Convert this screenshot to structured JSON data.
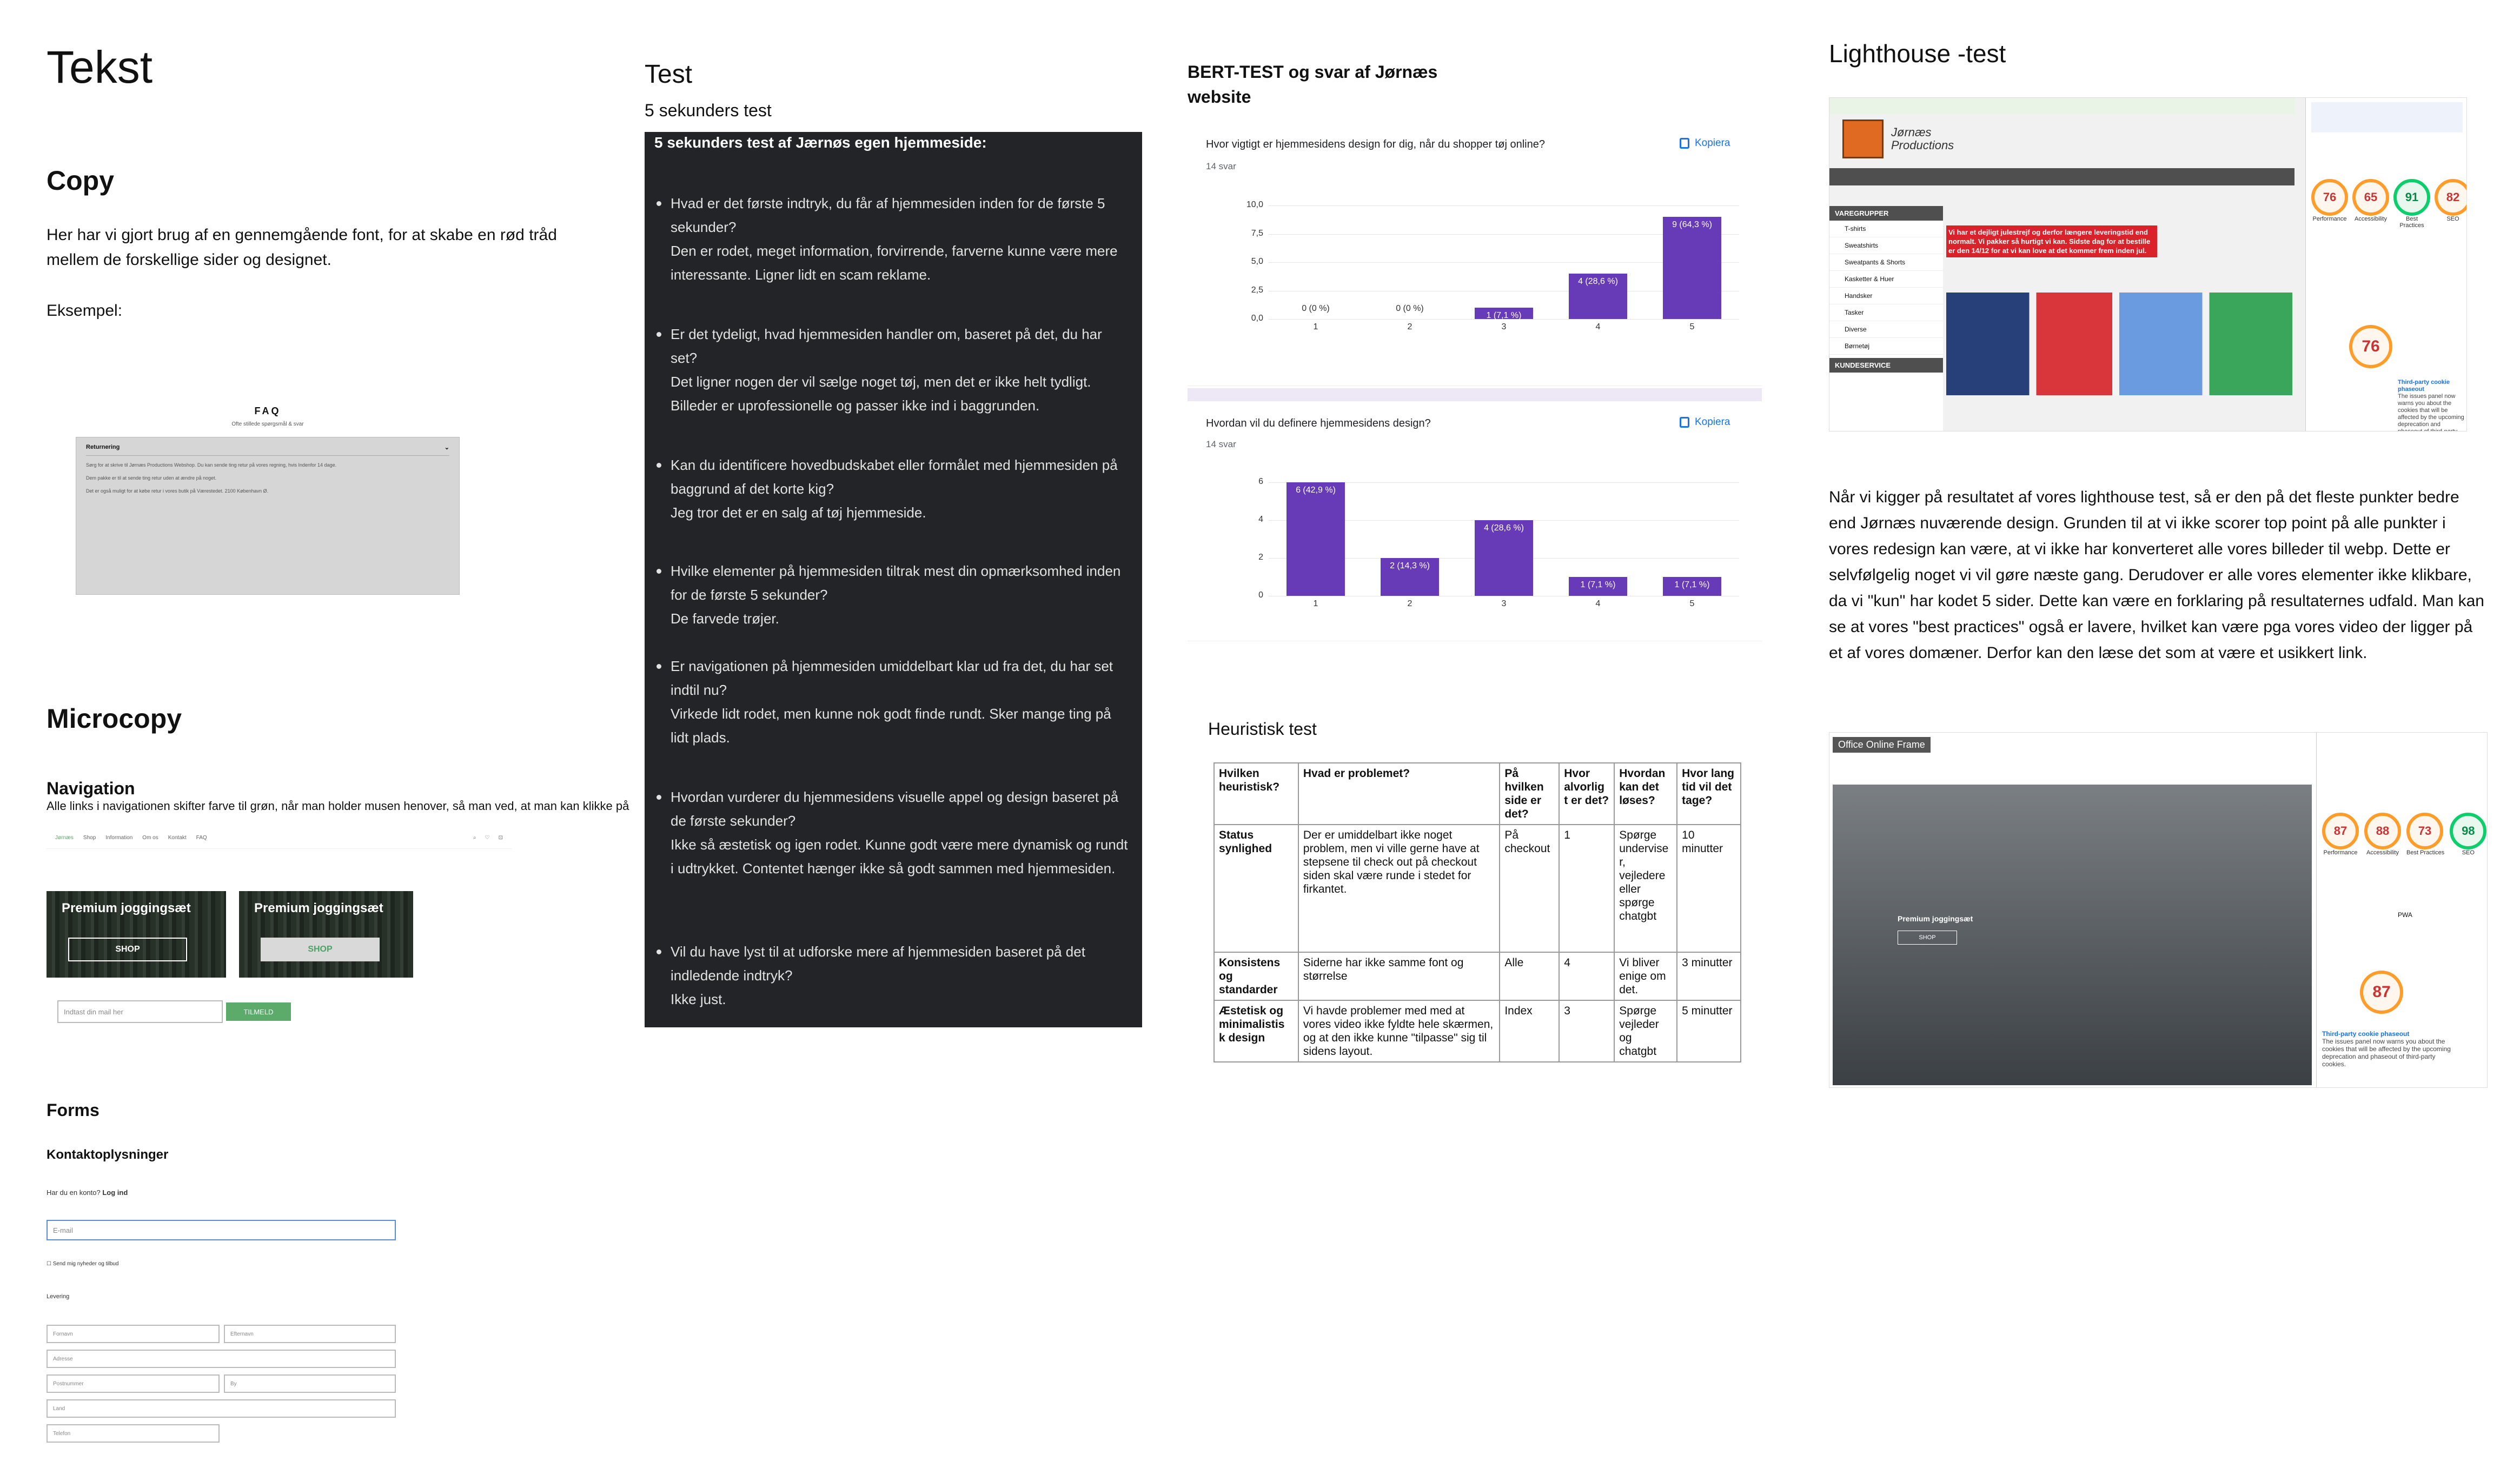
{
  "col1": {
    "title": "Tekst",
    "copy_heading": "Copy",
    "copy_text": "Her har vi gjort brug af en gennemgående font, for at skabe en rød tråd mellem de forskellige sider og designet.",
    "example_label": "Eksempel:",
    "faq": {
      "title": "FAQ",
      "subtitle": "Ofte stillede spørgsmål & svar",
      "item_label": "Returnering",
      "p1": "Sørg for at skrive til Jørnæs Productions Webshop. Du kan sende ting retur på vores regning, hvis Indenfor 14 dage.",
      "p2": "Dem pakke er til at sende ting retur uden at ændre på noget.",
      "p3": "Det er også muligt for at købe retur i vores butik på Værestedet. 2100 København Ø.",
      "chevron": "chevron-down-icon"
    },
    "microcopy_heading": "Microcopy",
    "navigation_heading": "Navigation",
    "navigation_text": "Alle links i navigationen skifter farve til grøn, når man holder musen henover, så man ved, at man kan klikke på",
    "nav_items": [
      "Jørnæs",
      "Shop",
      "Information",
      "Om os",
      "Kontakt",
      "FAQ"
    ],
    "tile1": {
      "title": "Premium joggingsæt",
      "button": "SHOP"
    },
    "tile2": {
      "title": "Premium joggingsæt",
      "button": "SHOP"
    },
    "newsletter_placeholder": "Indtast din mail her",
    "newsletter_button": "TILMELD",
    "forms_heading": "Forms",
    "contact_heading": "Kontaktoplysninger",
    "account_prompt": "Har du en konto?",
    "login_link": "Log ind",
    "email_placeholder": "E-mail",
    "newsletter_checkbox": "Send mig nyheder og tilbud",
    "delivery_label": "Levering",
    "first_name": "Fornavn",
    "last_name": "Efternavn",
    "address": "Adresse",
    "postcode": "Postnummer",
    "city": "By",
    "country": "Land",
    "phone": "Telefon"
  },
  "col2": {
    "title": "Test",
    "subtitle": "5 sekunders test",
    "box_title": "5 sekunders test af Jærnøs egen hjemmeside:",
    "items": [
      "Hvad er det første indtryk, du får af hjemmesiden inden for de første 5 sekunder?\nDen er rodet, meget information, forvirrende, farverne kunne være mere interessante. Ligner lidt en scam reklame.",
      "Er det tydeligt, hvad hjemmesiden handler om, baseret på det, du har set?\nDet ligner nogen der vil sælge noget tøj, men det er ikke helt tydligt. Billeder er uprofessionelle og passer ikke ind i baggrunden.",
      "Kan du identificere hovedbudskabet eller formålet med hjemmesiden på baggrund af det korte kig?\nJeg tror det er en salg af tøj hjemmeside.",
      "Hvilke elementer på hjemmesiden tiltrak mest din opmærksomhed inden for de første 5 sekunder?\nDe farvede trøjer.",
      "Er navigationen på hjemmesiden umiddelbart klar ud fra det, du har set indtil nu?\nVirkede lidt rodet, men kunne nok godt finde rundt. Sker mange ting på lidt plads.",
      "Hvordan vurderer du hjemmesidens visuelle appel og design baseret på de første sekunder?\nIkke så æstetisk og igen rodet. Kunne godt være mere dynamisk og rundt i udtrykket. Contentet hænger ikke så godt sammen med hjemmesiden.",
      "Vil du have lyst til at udforske mere af hjemmesiden baseret på det indledende indtryk?\nIkke just."
    ]
  },
  "col3": {
    "title_line1": "BERT-TEST og svar af Jørnæs",
    "title_line2": "website",
    "copy_label": "Kopiera",
    "chart_data": [
      {
        "type": "bar",
        "title": "Hvor vigtigt er hjemmesidens design for dig, når du shopper tøj online?",
        "subtitle": "14 svar",
        "categories": [
          "1",
          "2",
          "3",
          "4",
          "5"
        ],
        "values": [
          0,
          0,
          1,
          4,
          9
        ],
        "labels": [
          "0 (0 %)",
          "0 (0 %)",
          "1 (7,1 %)",
          "4 (28,6 %)",
          "9 (64,3 %)"
        ],
        "ylim": [
          0,
          10
        ],
        "yticks": [
          "0,0",
          "2,5",
          "5,0",
          "7,5",
          "10,0"
        ],
        "ytick_values": [
          0,
          2.5,
          5,
          7.5,
          10
        ],
        "color": "#673ab7"
      },
      {
        "type": "bar",
        "title": "Hvordan vil du definere hjemmesidens design?",
        "subtitle": "14 svar",
        "categories": [
          "1",
          "2",
          "3",
          "4",
          "5"
        ],
        "values": [
          6,
          2,
          4,
          1,
          1
        ],
        "labels": [
          "6 (42,9 %)",
          "2 (14,3 %)",
          "4 (28,6 %)",
          "1 (7,1 %)",
          "1 (7,1 %)"
        ],
        "ylim": [
          0,
          6
        ],
        "yticks": [
          "0",
          "2",
          "4",
          "6"
        ],
        "ytick_values": [
          0,
          2,
          4,
          6
        ],
        "color": "#673ab7"
      }
    ],
    "heuristic_title": "Heuristisk test",
    "table_headers": [
      "Hvilken heuristisk?",
      "Hvad er problemet?",
      "På hvilken side er det?",
      "Hvor alvorlig t er det?",
      "Hvordan kan det løses?",
      "Hvor lang tid vil det tage?"
    ],
    "table_rows": [
      [
        "Status synlighed",
        "Der er umiddelbart ikke noget problem, men vi ville gerne have at stepsene til check out på checkout siden skal være runde i stedet for firkantet.",
        "På checkout",
        "1",
        "Spørge undervise r, vejledere eller spørge chatgbt",
        "10 minutter"
      ],
      [
        "Konsistens og standarder",
        "Siderne har ikke samme font og størrelse",
        "Alle",
        "4",
        "Vi bliver enige om det.",
        "3 minutter"
      ],
      [
        "Æstetisk og minimalistis k design",
        "Vi havde problemer med med at vores video ikke fyldte hele skærmen, og at den ikke kunne \"tilpasse\" sig til sidens layout.",
        "Index",
        "3",
        "Spørge vejleder og chatgbt",
        "5 minutter"
      ]
    ]
  },
  "col4": {
    "title": "Lighthouse -test",
    "logo_text": "Jørnæs Productions",
    "banner_text": "Vi har et dejligt julestrejf og derfor længere leveringstid end normalt. Vi pakker så hurtigt vi kan. Sidste dag for at bestille er den 14/12 for at vi kan love at det kommer frem inden jul.",
    "sidebar_items": [
      "VAREGRUPPER",
      "T-shirts",
      "Sweatshirts",
      "Sweatpants & Shorts",
      "Kasketter & Huer",
      "Handsker",
      "Tasker",
      "Diverse",
      "Børnetøj",
      "KUNDESERVICE"
    ],
    "scores1": [
      {
        "label": "Performance",
        "value": "76",
        "good": false
      },
      {
        "label": "Accessibility",
        "value": "65",
        "good": false
      },
      {
        "label": "Best Practices",
        "value": "91",
        "good": true
      },
      {
        "label": "SEO",
        "value": "82",
        "good": false
      }
    ],
    "big_score1": "76",
    "cookie_heading": "Third-party cookie phaseout",
    "cookie_text": "The issues panel now warns you about the cookies that will be affected by the upcoming deprecation and phaseout of third-party cookies.",
    "paragraph": "Når vi kigger på resultatet af vores lighthouse test, så er den på det fleste punkter bedre end Jørnæs nuværende design. Grunden til at vi ikke scorer top point på alle punkter i vores redesign kan være, at vi ikke har konverteret alle vores billeder til webp. Dette er selvfølgelig noget vi vil gøre næste gang. Derudover er alle vores elementer ikke klikbare, da vi \"kun\" har kodet 5 sider. Dette kan være en forklaring på resultaternes udfald. Man kan se at vores \"best practices\" også er lavere, hvilket kan være pga vores video der ligger på et af vores domæner. Derfor kan den læse det som at være et usikkert link.",
    "frame_label": "Office Online Frame",
    "scores2": [
      {
        "label": "Performance",
        "value": "87",
        "good": false
      },
      {
        "label": "Accessibility",
        "value": "88",
        "good": false
      },
      {
        "label": "Best Practices",
        "value": "73",
        "good": false
      },
      {
        "label": "SEO",
        "value": "98",
        "good": true
      }
    ],
    "big_score2": "87",
    "pwa": "PWA",
    "hero_text": "Premium joggingsæt",
    "hero_button": "SHOP"
  }
}
